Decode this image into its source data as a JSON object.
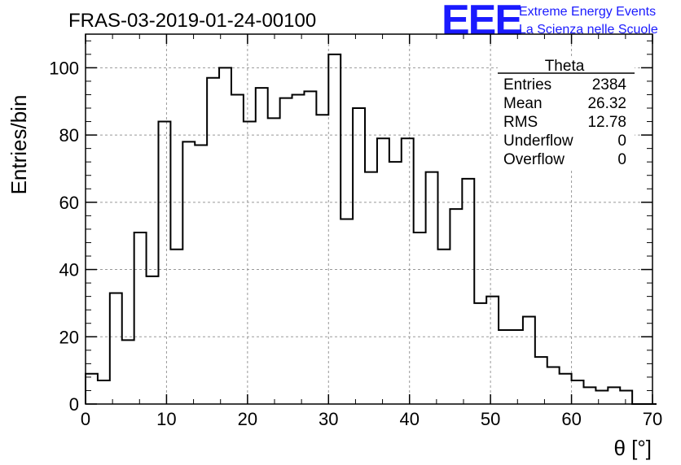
{
  "chart_data": {
    "type": "bar",
    "title": "FRAS-03-2019-01-24-00100",
    "xlabel": "θ [°]",
    "ylabel": "Entries/bin",
    "xlim": [
      0,
      70
    ],
    "ylim": [
      0,
      110
    ],
    "x_ticks": [
      0,
      10,
      20,
      30,
      40,
      50,
      60,
      70
    ],
    "y_ticks": [
      0,
      20,
      40,
      60,
      80,
      100
    ],
    "grid": true,
    "bin_width": 1.5,
    "bin_edges_start": 0,
    "values": [
      9,
      7,
      33,
      19,
      51,
      38,
      84,
      46,
      78,
      77,
      97,
      100,
      92,
      84,
      94,
      85,
      91,
      92,
      93,
      86,
      104,
      55,
      88,
      69,
      79,
      72,
      79,
      51,
      69,
      46,
      58,
      67,
      30,
      32,
      22,
      22,
      26,
      14,
      11,
      9,
      7,
      5,
      4,
      5,
      4,
      0,
      0
    ],
    "stats": {
      "name": "Theta",
      "rows": [
        {
          "label": "Entries",
          "value": "2384"
        },
        {
          "label": "Mean",
          "value": "26.32"
        },
        {
          "label": "RMS",
          "value": "12.78"
        },
        {
          "label": "Underflow",
          "value": "0"
        },
        {
          "label": "Overflow",
          "value": "0"
        }
      ]
    }
  },
  "logo": {
    "mark": "EEE",
    "line1": "Extreme Energy Events",
    "line2": "La Scienza nelle Scuole",
    "color": "#1a1aff"
  }
}
